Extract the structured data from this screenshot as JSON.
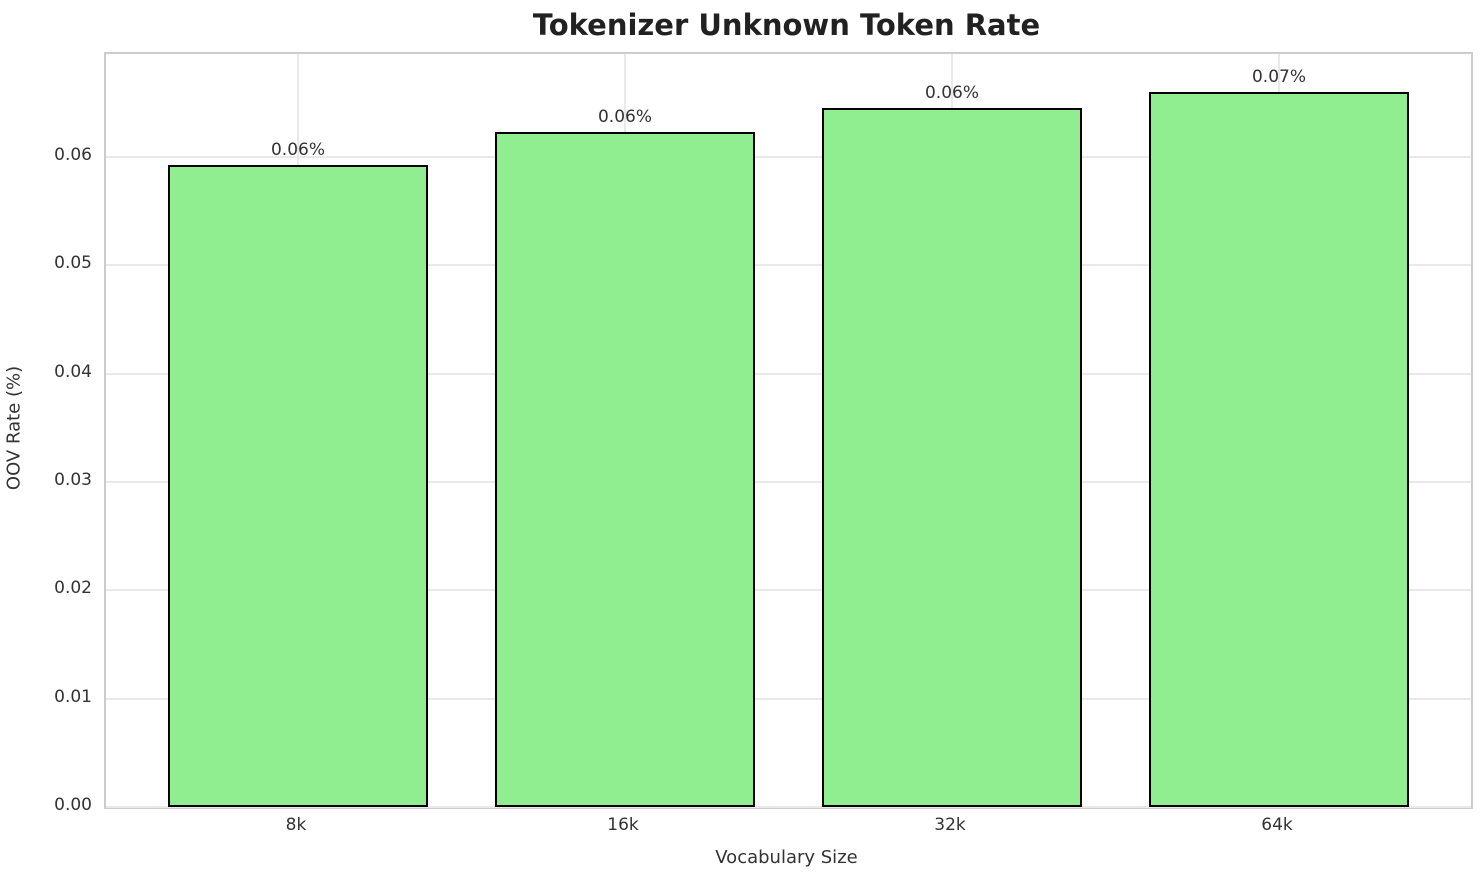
{
  "chart_data": {
    "type": "bar",
    "title": "Tokenizer Unknown Token Rate",
    "xlabel": "Vocabulary Size",
    "ylabel": "OOV Rate (%)",
    "categories": [
      "8k",
      "16k",
      "32k",
      "64k"
    ],
    "values": [
      0.0593,
      0.0623,
      0.0645,
      0.066
    ],
    "bar_labels": [
      "0.06%",
      "0.06%",
      "0.06%",
      "0.07%"
    ],
    "ytick_labels": [
      "0.00",
      "0.01",
      "0.02",
      "0.03",
      "0.04",
      "0.05",
      "0.06"
    ],
    "yticks": [
      0.0,
      0.01,
      0.02,
      0.03,
      0.04,
      0.05,
      0.06
    ],
    "ylim": [
      0,
      0.0695
    ],
    "grid": true,
    "legend": null,
    "colors": {
      "bar_fill": "#90EE90",
      "bar_edge": "#000000",
      "grid": "#e9e9e9",
      "spine": "#cccccc",
      "title_text": "#212121",
      "tick_text": "#333333"
    }
  }
}
